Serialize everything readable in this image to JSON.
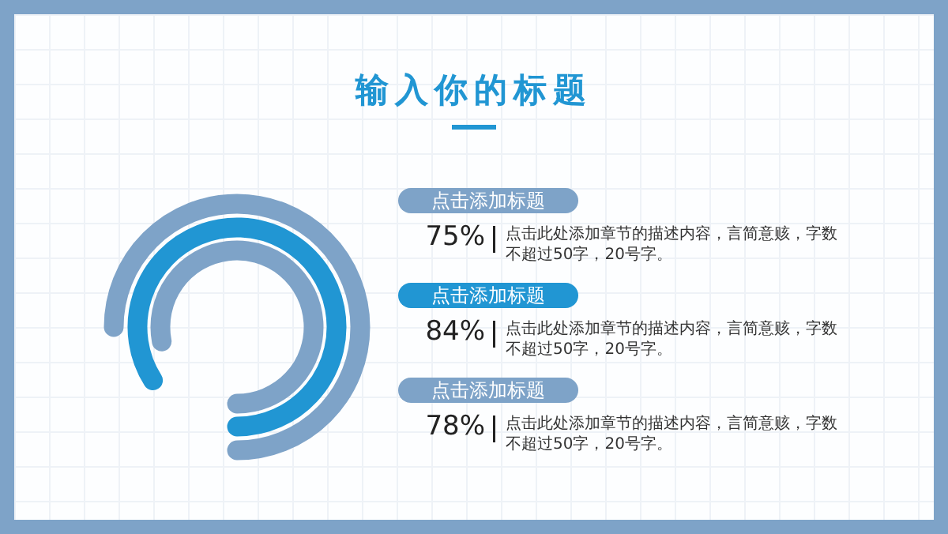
{
  "chart_data": {
    "type": "other",
    "title": "输入你的标题",
    "categories": [
      "点击添加标题",
      "点击添加标题",
      "点击添加标题"
    ],
    "values": [
      75,
      84,
      78
    ],
    "value_labels": [
      "75%",
      "84%",
      "78%"
    ],
    "colors": [
      "#7ea3c8",
      "#2196d3",
      "#7ea3c8"
    ],
    "annotations": [
      "点击此处添加章节的描述内容，言简意赅，字数不超过50字，20号字。",
      "点击此处添加章节的描述内容，言简意赅，字数不超过50字，20号字。",
      "点击此处添加章节的描述内容，言简意赅，字数不超过50字，20号字。"
    ]
  }
}
